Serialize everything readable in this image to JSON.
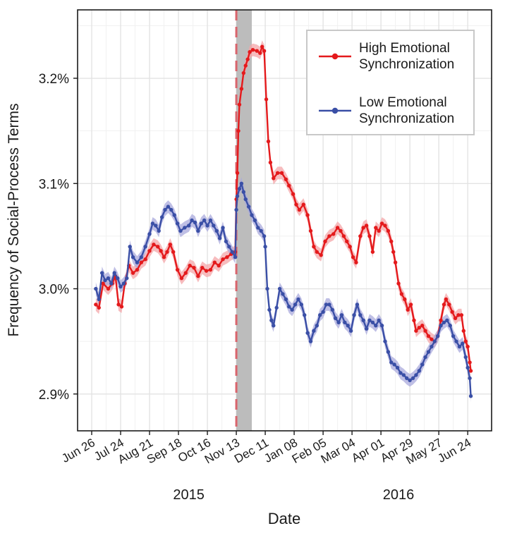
{
  "chart_data": {
    "type": "line",
    "title": "",
    "xlabel": "Date",
    "ylabel": "Frequency of Social-Process Terms",
    "x_start": "2015-06-26",
    "x_end": "2016-06-28",
    "x_ticks": [
      "2015-06-26",
      "2015-07-24",
      "2015-08-21",
      "2015-09-18",
      "2015-10-16",
      "2015-11-13",
      "2015-12-11",
      "2016-01-08",
      "2016-02-05",
      "2016-03-04",
      "2016-04-01",
      "2016-04-29",
      "2016-05-27",
      "2016-06-24"
    ],
    "x_tick_labels": [
      "Jun 26",
      "Jul 24",
      "Aug 21",
      "Sep 18",
      "Oct 16",
      "Nov 13",
      "Dec 11",
      "Jan 08",
      "Feb 05",
      "Mar 04",
      "Apr 01",
      "Apr 29",
      "May 27",
      "Jun 24"
    ],
    "year_labels": [
      {
        "label": "2015",
        "date": "2015-09-28"
      },
      {
        "label": "2016",
        "date": "2016-04-18"
      }
    ],
    "y_ticks": [
      2.9,
      3.0,
      3.1,
      3.2
    ],
    "y_tick_labels": [
      "2.9%",
      "3.0%",
      "3.1%",
      "3.2%"
    ],
    "ylim": [
      2.865,
      3.265
    ],
    "grid": true,
    "legend_position": "top-right",
    "event_line_date": "2015-11-13",
    "shaded_period": [
      "2015-11-13",
      "2015-11-28"
    ],
    "series": [
      {
        "name": "High Emotional Synchronization",
        "color": "#e41a1c",
        "band_color": "#f4a6a8",
        "points": [
          [
            "2015-06-30",
            2.985
          ],
          [
            "2015-07-03",
            2.982
          ],
          [
            "2015-07-07",
            3.005
          ],
          [
            "2015-07-12",
            3.0
          ],
          [
            "2015-07-16",
            3.005
          ],
          [
            "2015-07-19",
            3.012
          ],
          [
            "2015-07-22",
            2.985
          ],
          [
            "2015-07-25",
            2.983
          ],
          [
            "2015-07-28",
            3.005
          ],
          [
            "2015-08-01",
            3.022
          ],
          [
            "2015-08-05",
            3.015
          ],
          [
            "2015-08-09",
            3.018
          ],
          [
            "2015-08-13",
            3.025
          ],
          [
            "2015-08-17",
            3.028
          ],
          [
            "2015-08-21",
            3.036
          ],
          [
            "2015-08-25",
            3.042
          ],
          [
            "2015-08-29",
            3.04
          ],
          [
            "2015-09-01",
            3.036
          ],
          [
            "2015-09-04",
            3.03
          ],
          [
            "2015-09-07",
            3.035
          ],
          [
            "2015-09-10",
            3.042
          ],
          [
            "2015-09-13",
            3.035
          ],
          [
            "2015-09-17",
            3.018
          ],
          [
            "2015-09-21",
            3.01
          ],
          [
            "2015-09-25",
            3.015
          ],
          [
            "2015-09-29",
            3.022
          ],
          [
            "2015-10-03",
            3.02
          ],
          [
            "2015-10-07",
            3.012
          ],
          [
            "2015-10-11",
            3.02
          ],
          [
            "2015-10-15",
            3.017
          ],
          [
            "2015-10-19",
            3.018
          ],
          [
            "2015-10-23",
            3.025
          ],
          [
            "2015-10-27",
            3.022
          ],
          [
            "2015-10-31",
            3.028
          ],
          [
            "2015-11-04",
            3.03
          ],
          [
            "2015-11-08",
            3.033
          ],
          [
            "2015-11-12",
            3.035
          ],
          [
            "2015-11-13",
            3.085
          ],
          [
            "2015-11-14",
            3.11
          ],
          [
            "2015-11-15",
            3.15
          ],
          [
            "2015-11-16",
            3.175
          ],
          [
            "2015-11-18",
            3.19
          ],
          [
            "2015-11-20",
            3.205
          ],
          [
            "2015-11-22",
            3.212
          ],
          [
            "2015-11-24",
            3.218
          ],
          [
            "2015-11-26",
            3.225
          ],
          [
            "2015-11-29",
            3.227
          ],
          [
            "2015-12-03",
            3.226
          ],
          [
            "2015-12-06",
            3.224
          ],
          [
            "2015-12-08",
            3.23
          ],
          [
            "2015-12-10",
            3.226
          ],
          [
            "2015-12-12",
            3.18
          ],
          [
            "2015-12-14",
            3.14
          ],
          [
            "2015-12-16",
            3.12
          ],
          [
            "2015-12-19",
            3.105
          ],
          [
            "2015-12-23",
            3.11
          ],
          [
            "2015-12-27",
            3.11
          ],
          [
            "2015-12-31",
            3.104
          ],
          [
            "2016-01-03",
            3.098
          ],
          [
            "2016-01-07",
            3.09
          ],
          [
            "2016-01-10",
            3.08
          ],
          [
            "2016-01-13",
            3.075
          ],
          [
            "2016-01-17",
            3.08
          ],
          [
            "2016-01-21",
            3.07
          ],
          [
            "2016-01-24",
            3.055
          ],
          [
            "2016-01-27",
            3.04
          ],
          [
            "2016-01-30",
            3.035
          ],
          [
            "2016-02-03",
            3.032
          ],
          [
            "2016-02-07",
            3.045
          ],
          [
            "2016-02-11",
            3.05
          ],
          [
            "2016-02-15",
            3.052
          ],
          [
            "2016-02-19",
            3.058
          ],
          [
            "2016-02-22",
            3.055
          ],
          [
            "2016-02-25",
            3.05
          ],
          [
            "2016-02-28",
            3.045
          ],
          [
            "2016-03-02",
            3.04
          ],
          [
            "2016-03-05",
            3.03
          ],
          [
            "2016-03-08",
            3.025
          ],
          [
            "2016-03-12",
            3.05
          ],
          [
            "2016-03-15",
            3.058
          ],
          [
            "2016-03-18",
            3.06
          ],
          [
            "2016-03-21",
            3.05
          ],
          [
            "2016-03-24",
            3.035
          ],
          [
            "2016-03-27",
            3.058
          ],
          [
            "2016-03-30",
            3.055
          ],
          [
            "2016-04-02",
            3.062
          ],
          [
            "2016-04-05",
            3.06
          ],
          [
            "2016-04-08",
            3.055
          ],
          [
            "2016-04-11",
            3.045
          ],
          [
            "2016-04-13",
            3.035
          ],
          [
            "2016-04-15",
            3.025
          ],
          [
            "2016-04-18",
            3.005
          ],
          [
            "2016-04-21",
            2.995
          ],
          [
            "2016-04-24",
            2.99
          ],
          [
            "2016-04-27",
            2.98
          ],
          [
            "2016-04-30",
            2.985
          ],
          [
            "2016-05-03",
            2.97
          ],
          [
            "2016-05-05",
            2.96
          ],
          [
            "2016-05-08",
            2.963
          ],
          [
            "2016-05-11",
            2.965
          ],
          [
            "2016-05-14",
            2.96
          ],
          [
            "2016-05-17",
            2.955
          ],
          [
            "2016-05-20",
            2.952
          ],
          [
            "2016-05-23",
            2.95
          ],
          [
            "2016-05-26",
            2.955
          ],
          [
            "2016-05-29",
            2.97
          ],
          [
            "2016-06-01",
            2.985
          ],
          [
            "2016-06-03",
            2.99
          ],
          [
            "2016-06-06",
            2.985
          ],
          [
            "2016-06-09",
            2.978
          ],
          [
            "2016-06-12",
            2.972
          ],
          [
            "2016-06-15",
            2.975
          ],
          [
            "2016-06-18",
            2.975
          ],
          [
            "2016-06-20",
            2.96
          ],
          [
            "2016-06-22",
            2.95
          ],
          [
            "2016-06-24",
            2.945
          ],
          [
            "2016-06-26",
            2.93
          ],
          [
            "2016-06-27",
            2.922
          ]
        ]
      },
      {
        "name": "Low Emotional Synchronization",
        "color": "#3a4fa6",
        "band_color": "#a9a9dc",
        "points": [
          [
            "2015-06-30",
            3.0
          ],
          [
            "2015-07-03",
            2.99
          ],
          [
            "2015-07-06",
            3.015
          ],
          [
            "2015-07-09",
            3.008
          ],
          [
            "2015-07-12",
            3.01
          ],
          [
            "2015-07-15",
            3.005
          ],
          [
            "2015-07-18",
            3.015
          ],
          [
            "2015-07-21",
            3.01
          ],
          [
            "2015-07-24",
            3.002
          ],
          [
            "2015-07-27",
            3.005
          ],
          [
            "2015-07-30",
            3.01
          ],
          [
            "2015-08-02",
            3.04
          ],
          [
            "2015-08-05",
            3.03
          ],
          [
            "2015-08-09",
            3.025
          ],
          [
            "2015-08-13",
            3.03
          ],
          [
            "2015-08-17",
            3.04
          ],
          [
            "2015-08-21",
            3.052
          ],
          [
            "2015-08-24",
            3.062
          ],
          [
            "2015-08-27",
            3.06
          ],
          [
            "2015-08-30",
            3.055
          ],
          [
            "2015-09-02",
            3.068
          ],
          [
            "2015-09-05",
            3.075
          ],
          [
            "2015-09-08",
            3.078
          ],
          [
            "2015-09-11",
            3.075
          ],
          [
            "2015-09-14",
            3.07
          ],
          [
            "2015-09-17",
            3.062
          ],
          [
            "2015-09-20",
            3.055
          ],
          [
            "2015-09-24",
            3.058
          ],
          [
            "2015-09-28",
            3.06
          ],
          [
            "2015-10-01",
            3.065
          ],
          [
            "2015-10-04",
            3.063
          ],
          [
            "2015-10-07",
            3.055
          ],
          [
            "2015-10-10",
            3.062
          ],
          [
            "2015-10-13",
            3.065
          ],
          [
            "2015-10-16",
            3.06
          ],
          [
            "2015-10-19",
            3.065
          ],
          [
            "2015-10-22",
            3.06
          ],
          [
            "2015-10-25",
            3.055
          ],
          [
            "2015-10-28",
            3.048
          ],
          [
            "2015-10-31",
            3.058
          ],
          [
            "2015-11-03",
            3.045
          ],
          [
            "2015-11-06",
            3.04
          ],
          [
            "2015-11-09",
            3.035
          ],
          [
            "2015-11-12",
            3.03
          ],
          [
            "2015-11-13",
            3.075
          ],
          [
            "2015-11-14",
            3.088
          ],
          [
            "2015-11-16",
            3.095
          ],
          [
            "2015-11-18",
            3.1
          ],
          [
            "2015-11-20",
            3.092
          ],
          [
            "2015-11-22",
            3.085
          ],
          [
            "2015-11-25",
            3.078
          ],
          [
            "2015-11-28",
            3.07
          ],
          [
            "2015-12-01",
            3.065
          ],
          [
            "2015-12-04",
            3.058
          ],
          [
            "2015-12-07",
            3.055
          ],
          [
            "2015-12-10",
            3.05
          ],
          [
            "2015-12-11",
            3.04
          ],
          [
            "2015-12-13",
            3.0
          ],
          [
            "2015-12-15",
            2.98
          ],
          [
            "2015-12-17",
            2.97
          ],
          [
            "2015-12-19",
            2.965
          ],
          [
            "2015-12-22",
            2.982
          ],
          [
            "2015-12-25",
            3.0
          ],
          [
            "2015-12-28",
            2.995
          ],
          [
            "2015-12-31",
            2.99
          ],
          [
            "2016-01-03",
            2.983
          ],
          [
            "2016-01-06",
            2.98
          ],
          [
            "2016-01-09",
            2.985
          ],
          [
            "2016-01-12",
            2.99
          ],
          [
            "2016-01-15",
            2.985
          ],
          [
            "2016-01-18",
            2.975
          ],
          [
            "2016-01-21",
            2.958
          ],
          [
            "2016-01-24",
            2.95
          ],
          [
            "2016-01-27",
            2.96
          ],
          [
            "2016-01-30",
            2.965
          ],
          [
            "2016-02-02",
            2.975
          ],
          [
            "2016-02-05",
            2.978
          ],
          [
            "2016-02-08",
            2.985
          ],
          [
            "2016-02-11",
            2.985
          ],
          [
            "2016-02-14",
            2.98
          ],
          [
            "2016-02-17",
            2.972
          ],
          [
            "2016-02-20",
            2.968
          ],
          [
            "2016-02-23",
            2.975
          ],
          [
            "2016-02-26",
            2.968
          ],
          [
            "2016-02-29",
            2.965
          ],
          [
            "2016-03-03",
            2.96
          ],
          [
            "2016-03-06",
            2.975
          ],
          [
            "2016-03-09",
            2.985
          ],
          [
            "2016-03-12",
            2.975
          ],
          [
            "2016-03-15",
            2.97
          ],
          [
            "2016-03-18",
            2.962
          ],
          [
            "2016-03-21",
            2.97
          ],
          [
            "2016-03-24",
            2.968
          ],
          [
            "2016-03-27",
            2.965
          ],
          [
            "2016-03-30",
            2.97
          ],
          [
            "2016-04-02",
            2.965
          ],
          [
            "2016-04-05",
            2.95
          ],
          [
            "2016-04-08",
            2.94
          ],
          [
            "2016-04-11",
            2.93
          ],
          [
            "2016-04-14",
            2.928
          ],
          [
            "2016-04-17",
            2.925
          ],
          [
            "2016-04-20",
            2.92
          ],
          [
            "2016-04-23",
            2.918
          ],
          [
            "2016-04-26",
            2.915
          ],
          [
            "2016-04-29",
            2.913
          ],
          [
            "2016-05-02",
            2.915
          ],
          [
            "2016-05-05",
            2.918
          ],
          [
            "2016-05-08",
            2.922
          ],
          [
            "2016-05-11",
            2.928
          ],
          [
            "2016-05-14",
            2.935
          ],
          [
            "2016-05-17",
            2.94
          ],
          [
            "2016-05-20",
            2.945
          ],
          [
            "2016-05-23",
            2.95
          ],
          [
            "2016-05-26",
            2.955
          ],
          [
            "2016-05-29",
            2.965
          ],
          [
            "2016-06-01",
            2.968
          ],
          [
            "2016-06-04",
            2.97
          ],
          [
            "2016-06-07",
            2.965
          ],
          [
            "2016-06-10",
            2.955
          ],
          [
            "2016-06-13",
            2.95
          ],
          [
            "2016-06-16",
            2.945
          ],
          [
            "2016-06-19",
            2.948
          ],
          [
            "2016-06-22",
            2.935
          ],
          [
            "2016-06-24",
            2.925
          ],
          [
            "2016-06-26",
            2.915
          ],
          [
            "2016-06-27",
            2.898
          ]
        ]
      }
    ]
  }
}
